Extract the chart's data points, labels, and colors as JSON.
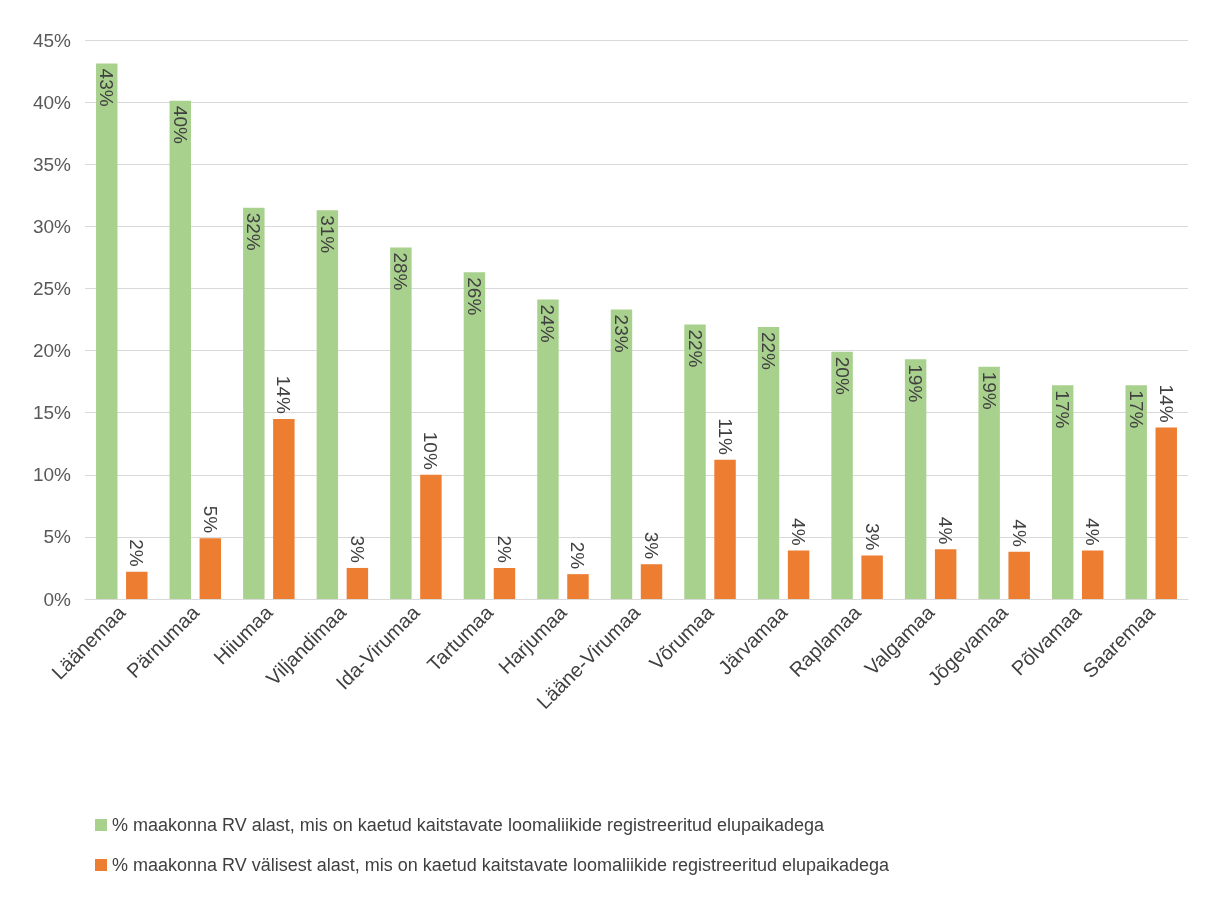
{
  "chart_data": {
    "type": "bar",
    "categories": [
      "Läänemaa",
      "Pärnumaa",
      "Hiiumaa",
      "Viljandimaa",
      "Ida-Virumaa",
      "Tartumaa",
      "Harjumaa",
      "Lääne-Virumaa",
      "Võrumaa",
      "Järvamaa",
      "Raplamaa",
      "Valgamaa",
      "Jõgevamaa",
      "Põlvamaa",
      "Saaremaa"
    ],
    "series": [
      {
        "name": "% maakonna RV alast, mis on kaetud kaitstavate loomaliikide registreeritud elupaikadega",
        "color": "#a9d18e",
        "values": [
          43.1,
          40.1,
          31.5,
          31.3,
          28.3,
          26.3,
          24.1,
          23.3,
          22.1,
          21.9,
          19.9,
          19.3,
          18.7,
          17.2,
          17.2
        ],
        "value_labels": [
          "43%",
          "40%",
          "32%",
          "31%",
          "28%",
          "26%",
          "24%",
          "23%",
          "22%",
          "22%",
          "20%",
          "19%",
          "19%",
          "17%",
          "17%"
        ]
      },
      {
        "name": "% maakonna RV välisest alast, mis on kaetud kaitstavate loomaliikide registreeritud elupaikadega",
        "color": "#ed7d31",
        "values": [
          2.2,
          4.9,
          14.5,
          2.5,
          10.0,
          2.5,
          2.0,
          2.8,
          11.2,
          3.9,
          3.5,
          4.0,
          3.8,
          3.9,
          13.8
        ],
        "value_labels": [
          "2%",
          "5%",
          "14%",
          "3%",
          "10%",
          "2%",
          "2%",
          "3%",
          "11%",
          "4%",
          "3%",
          "4%",
          "4%",
          "4%",
          "14%"
        ]
      }
    ],
    "ylim": [
      0,
      45
    ],
    "yticks": [
      {
        "value": 0,
        "label": "0%"
      },
      {
        "value": 5,
        "label": "5%"
      },
      {
        "value": 10,
        "label": "10%"
      },
      {
        "value": 15,
        "label": "15%"
      },
      {
        "value": 20,
        "label": "20%"
      },
      {
        "value": 25,
        "label": "25%"
      },
      {
        "value": 30,
        "label": "30%"
      },
      {
        "value": 35,
        "label": "35%"
      },
      {
        "value": 40,
        "label": "40%"
      },
      {
        "value": 45,
        "label": "45%"
      }
    ],
    "grid": "y",
    "legend": "bottom"
  }
}
